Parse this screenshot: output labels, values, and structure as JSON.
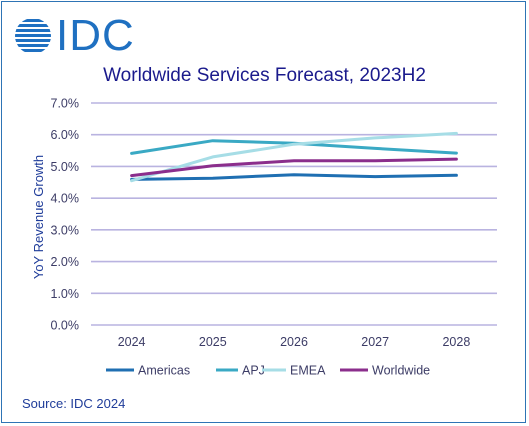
{
  "logo": {
    "text": "IDC"
  },
  "source": "Source: IDC 2024",
  "colors": {
    "Americas": "#1f6fb2",
    "APJ": "#3aa9c4",
    "EMEA": "#a6dde6",
    "Worldwide": "#8b2e8c",
    "grid": "#b9b3e0",
    "axis_text": "#3c3c66"
  },
  "chart_data": {
    "type": "line",
    "title": "Worldwide Services Forecast, 2023H2",
    "xlabel": "",
    "ylabel": "YoY Revenue Growth",
    "categories": [
      "2024",
      "2025",
      "2026",
      "2027",
      "2028"
    ],
    "ylim": [
      0,
      0.07
    ],
    "yticks": [
      "0.0%",
      "1.0%",
      "2.0%",
      "3.0%",
      "4.0%",
      "5.0%",
      "6.0%",
      "7.0%"
    ],
    "grid": true,
    "legend": "bottom",
    "series": [
      {
        "name": "Americas",
        "values": [
          0.0459,
          0.0463,
          0.0474,
          0.0468,
          0.0472
        ]
      },
      {
        "name": "APJ",
        "values": [
          0.0541,
          0.0581,
          0.0573,
          0.0557,
          0.0542
        ]
      },
      {
        "name": "EMEA",
        "values": [
          0.0455,
          0.053,
          0.057,
          0.059,
          0.0604
        ]
      },
      {
        "name": "Worldwide",
        "values": [
          0.0471,
          0.0502,
          0.0518,
          0.0518,
          0.0523
        ]
      }
    ]
  }
}
